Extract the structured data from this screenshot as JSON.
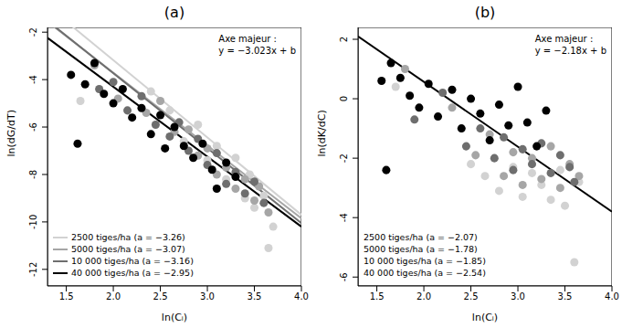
{
  "chart_data": [
    {
      "type": "scatter",
      "title": "(a)",
      "x_label": "ln(Cᵢ)",
      "y_label": "ln(dG/dT)",
      "xlim": [
        1.3,
        4.0
      ],
      "xticks": [
        1.5,
        2.0,
        2.5,
        3.0,
        3.5,
        4.0
      ],
      "ylim": [
        -12.7,
        -1.8
      ],
      "yticks": [
        -2,
        -4,
        -6,
        -8,
        -10,
        -12
      ],
      "legend": "bottom left",
      "annotation": [
        "Axe majeur :",
        "y = −3.023x + b"
      ],
      "series": [
        {
          "name": "2500 tiges/ha (a = −3.26)",
          "color": "#d2d2d2",
          "line_style": "solid",
          "line": {
            "x": [
              1.3,
              4.0
            ],
            "y": [
              -0.9,
              -9.7
            ]
          },
          "values": [
            [
              1.65,
              -4.9
            ],
            [
              2.4,
              -4.5
            ],
            [
              2.6,
              -5.3
            ],
            [
              2.75,
              -6.6
            ],
            [
              2.9,
              -5.9
            ],
            [
              3.0,
              -7.4
            ],
            [
              3.1,
              -6.8
            ],
            [
              3.2,
              -8.2
            ],
            [
              3.3,
              -7.3
            ],
            [
              3.4,
              -9.0
            ],
            [
              3.45,
              -8.0
            ],
            [
              3.5,
              -9.4
            ],
            [
              3.6,
              -8.9
            ],
            [
              3.65,
              -11.1
            ],
            [
              3.7,
              -10.2
            ]
          ]
        },
        {
          "name": "5000 tiges/ha (a = −3.07)",
          "color": "#a6a6a6",
          "line_style": "solid",
          "line": {
            "x": [
              1.3,
              4.0
            ],
            "y": [
              -1.56,
              -9.85
            ]
          },
          "values": [
            [
              1.8,
              -3.4
            ],
            [
              2.05,
              -4.8
            ],
            [
              2.35,
              -5.4
            ],
            [
              2.5,
              -4.9
            ],
            [
              2.65,
              -6.2
            ],
            [
              2.8,
              -6.1
            ],
            [
              2.9,
              -7.2
            ],
            [
              3.0,
              -6.9
            ],
            [
              3.1,
              -8.0
            ],
            [
              3.2,
              -7.7
            ],
            [
              3.3,
              -8.6
            ],
            [
              3.4,
              -8.2
            ],
            [
              3.5,
              -9.1
            ],
            [
              3.55,
              -8.5
            ],
            [
              3.65,
              -9.6
            ]
          ]
        },
        {
          "name": "10 000 tiges/ha (a = −3.16)",
          "color": "#6e6e6e",
          "line_style": "solid",
          "line": {
            "x": [
              1.3,
              4.0
            ],
            "y": [
              -1.52,
              -10.05
            ]
          },
          "values": [
            [
              1.85,
              -4.4
            ],
            [
              2.0,
              -4.1
            ],
            [
              2.15,
              -5.3
            ],
            [
              2.3,
              -4.7
            ],
            [
              2.45,
              -5.9
            ],
            [
              2.6,
              -6.4
            ],
            [
              2.7,
              -5.8
            ],
            [
              2.8,
              -7.0
            ],
            [
              2.9,
              -6.5
            ],
            [
              3.0,
              -7.6
            ],
            [
              3.1,
              -7.1
            ],
            [
              3.2,
              -8.4
            ],
            [
              3.3,
              -7.9
            ],
            [
              3.4,
              -8.8
            ],
            [
              3.5,
              -8.3
            ],
            [
              3.6,
              -9.2
            ]
          ]
        },
        {
          "name": "40 000 tiges/ha (a = −2.95)",
          "color": "#000000",
          "line_style": "solid",
          "line": {
            "x": [
              1.3,
              4.0
            ],
            "y": [
              -2.24,
              -10.2
            ]
          },
          "values": [
            [
              1.55,
              -3.8
            ],
            [
              1.62,
              -6.7
            ],
            [
              1.7,
              -4.2
            ],
            [
              1.8,
              -3.3
            ],
            [
              1.9,
              -4.6
            ],
            [
              2.0,
              -5.0
            ],
            [
              2.1,
              -4.4
            ],
            [
              2.2,
              -5.6
            ],
            [
              2.3,
              -5.2
            ],
            [
              2.4,
              -6.3
            ],
            [
              2.5,
              -5.5
            ],
            [
              2.55,
              -6.9
            ],
            [
              2.65,
              -6.0
            ],
            [
              2.75,
              -6.8
            ],
            [
              2.85,
              -7.3
            ],
            [
              2.95,
              -6.7
            ],
            [
              3.05,
              -7.8
            ],
            [
              3.1,
              -8.6
            ],
            [
              3.2,
              -7.5
            ],
            [
              3.3,
              -8.1
            ]
          ]
        }
      ]
    },
    {
      "type": "scatter",
      "title": "(b)",
      "x_label": "ln(Cᵢ)",
      "y_label": "ln(dK/dC)",
      "xlim": [
        1.3,
        4.0
      ],
      "xticks": [
        1.5,
        2.0,
        2.5,
        3.0,
        3.5,
        4.0
      ],
      "ylim": [
        -6.3,
        2.4
      ],
      "yticks": [
        -6,
        -4,
        -2,
        0,
        2
      ],
      "legend": "bottom left",
      "annotation": [
        "Axe majeur :",
        "y = −2.18x + b"
      ],
      "major_axis": {
        "color": "#000000",
        "x": [
          1.3,
          4.0
        ],
        "y": [
          2.1,
          -3.8
        ]
      },
      "series": [
        {
          "name": "2500 tiges/ha (a = −2.07)",
          "color": "#d2d2d2",
          "values": [
            [
              1.7,
              0.4
            ],
            [
              2.5,
              -2.2
            ],
            [
              2.65,
              -2.6
            ],
            [
              2.8,
              -3.1
            ],
            [
              2.95,
              -2.3
            ],
            [
              3.05,
              -3.3
            ],
            [
              3.15,
              -2.5
            ],
            [
              3.25,
              -2.9
            ],
            [
              3.35,
              -3.4
            ],
            [
              3.45,
              -2.4
            ],
            [
              3.5,
              -3.6
            ],
            [
              3.6,
              -5.5
            ],
            [
              3.65,
              -2.8
            ]
          ]
        },
        {
          "name": "5000 tiges/ha (a = −1.78)",
          "color": "#a6a6a6",
          "values": [
            [
              1.8,
              1.0
            ],
            [
              2.3,
              -0.3
            ],
            [
              2.55,
              -1.9
            ],
            [
              2.7,
              -1.2
            ],
            [
              2.85,
              -2.6
            ],
            [
              2.95,
              -1.8
            ],
            [
              3.05,
              -2.9
            ],
            [
              3.15,
              -2.0
            ],
            [
              3.25,
              -2.7
            ],
            [
              3.35,
              -1.6
            ],
            [
              3.45,
              -3.0
            ],
            [
              3.55,
              -2.2
            ],
            [
              3.65,
              -2.6
            ]
          ]
        },
        {
          "name": "10 000 tiges/ha (a = −1.85)",
          "color": "#6e6e6e",
          "values": [
            [
              1.9,
              -0.7
            ],
            [
              2.2,
              0.2
            ],
            [
              2.45,
              -1.6
            ],
            [
              2.6,
              -1.0
            ],
            [
              2.75,
              -2.0
            ],
            [
              2.85,
              -1.3
            ],
            [
              2.95,
              -2.4
            ],
            [
              3.05,
              -1.7
            ],
            [
              3.15,
              -2.2
            ],
            [
              3.25,
              -1.5
            ],
            [
              3.35,
              -2.5
            ],
            [
              3.45,
              -1.9
            ],
            [
              3.55,
              -2.3
            ],
            [
              3.6,
              -2.8
            ]
          ]
        },
        {
          "name": "40 000 tiges/ha (a = −2.54)",
          "color": "#000000",
          "values": [
            [
              1.55,
              0.6
            ],
            [
              1.6,
              -2.4
            ],
            [
              1.65,
              1.2
            ],
            [
              1.75,
              0.7
            ],
            [
              1.85,
              0.1
            ],
            [
              1.95,
              -0.3
            ],
            [
              2.05,
              0.5
            ],
            [
              2.15,
              -0.6
            ],
            [
              2.3,
              0.3
            ],
            [
              2.4,
              -1.0
            ],
            [
              2.5,
              0.0
            ],
            [
              2.6,
              -0.5
            ],
            [
              2.7,
              -1.4
            ],
            [
              2.8,
              -0.2
            ],
            [
              2.9,
              -0.9
            ],
            [
              3.0,
              0.4
            ],
            [
              3.1,
              -0.8
            ],
            [
              3.2,
              -1.6
            ],
            [
              3.3,
              -0.4
            ]
          ]
        }
      ]
    }
  ]
}
